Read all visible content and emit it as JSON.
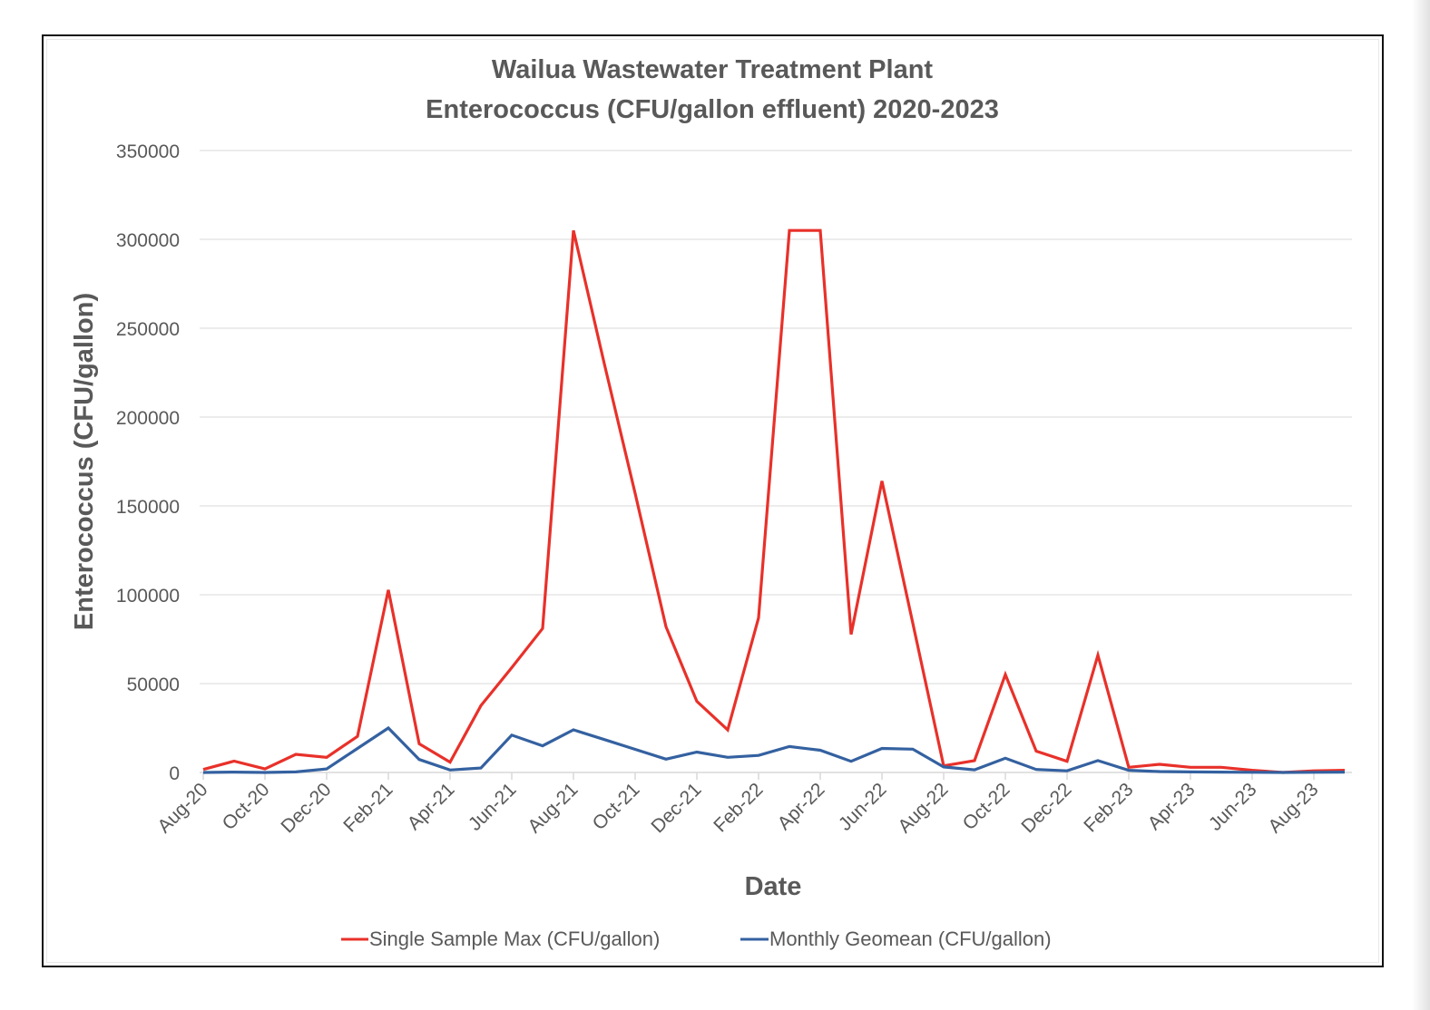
{
  "chart_data": {
    "type": "line",
    "title": "Wailua Wastewater Treatment Plant",
    "subtitle": "Enterococcus (CFU/gallon effluent) 2020-2023",
    "xlabel": "Date",
    "ylabel": "Enterococcus (CFU/gallon)",
    "ylim": [
      0,
      350000
    ],
    "yticks": [
      "0",
      "50000",
      "100000",
      "150000",
      "200000",
      "250000",
      "300000",
      "350000"
    ],
    "ytick_values": [
      0,
      50000,
      100000,
      150000,
      200000,
      250000,
      300000,
      350000
    ],
    "grid": true,
    "legend_position": "bottom",
    "x": [
      "Aug-20",
      "Sep-20",
      "Oct-20",
      "Nov-20",
      "Dec-20",
      "Jan-21",
      "Feb-21",
      "Mar-21",
      "Apr-21",
      "May-21",
      "Jun-21",
      "Jul-21",
      "Aug-21",
      "Sep-21",
      "Oct-21",
      "Nov-21",
      "Dec-21",
      "Jan-22",
      "Feb-22",
      "Mar-22",
      "Apr-22",
      "May-22",
      "Jun-22",
      "Jul-22",
      "Aug-22",
      "Sep-22",
      "Oct-22",
      "Nov-22",
      "Dec-22",
      "Jan-23",
      "Feb-23",
      "Mar-23",
      "Apr-23",
      "May-23",
      "Jun-23",
      "Jul-23",
      "Aug-23",
      "Sep-23"
    ],
    "xtick_labels": [
      "Aug-20",
      "Oct-20",
      "Dec-20",
      "Feb-21",
      "Apr-21",
      "Jun-21",
      "Aug-21",
      "Oct-21",
      "Dec-21",
      "Feb-22",
      "Apr-22",
      "Jun-22",
      "Aug-22",
      "Oct-22",
      "Dec-22",
      "Feb-23",
      "Apr-23",
      "Jun-23",
      "Aug-23"
    ],
    "series": [
      {
        "name": "Single Sample Max (CFU/gallon)",
        "color": "#e8312a",
        "values": [
          1700,
          6400,
          2000,
          10200,
          8500,
          20300,
          102700,
          16100,
          5800,
          37600,
          59000,
          81000,
          305000,
          230000,
          157000,
          82000,
          40000,
          24000,
          87000,
          305000,
          305000,
          77700,
          164000,
          84000,
          3700,
          6700,
          55100,
          12000,
          6300,
          66000,
          2900,
          4600,
          2900,
          2900,
          1200,
          0,
          900,
          1200
        ]
      },
      {
        "name": "Monthly Geomean (CFU/gallon)",
        "color": "#3461a0",
        "values": [
          0,
          200,
          0,
          300,
          2000,
          13500,
          25000,
          7300,
          1400,
          2500,
          21000,
          15000,
          24000,
          18500,
          13000,
          7500,
          11500,
          8500,
          9600,
          14600,
          12500,
          6300,
          13500,
          13100,
          3100,
          1500,
          8000,
          1700,
          900,
          6700,
          1200,
          500,
          300,
          200,
          100,
          0,
          100,
          200
        ]
      }
    ]
  }
}
